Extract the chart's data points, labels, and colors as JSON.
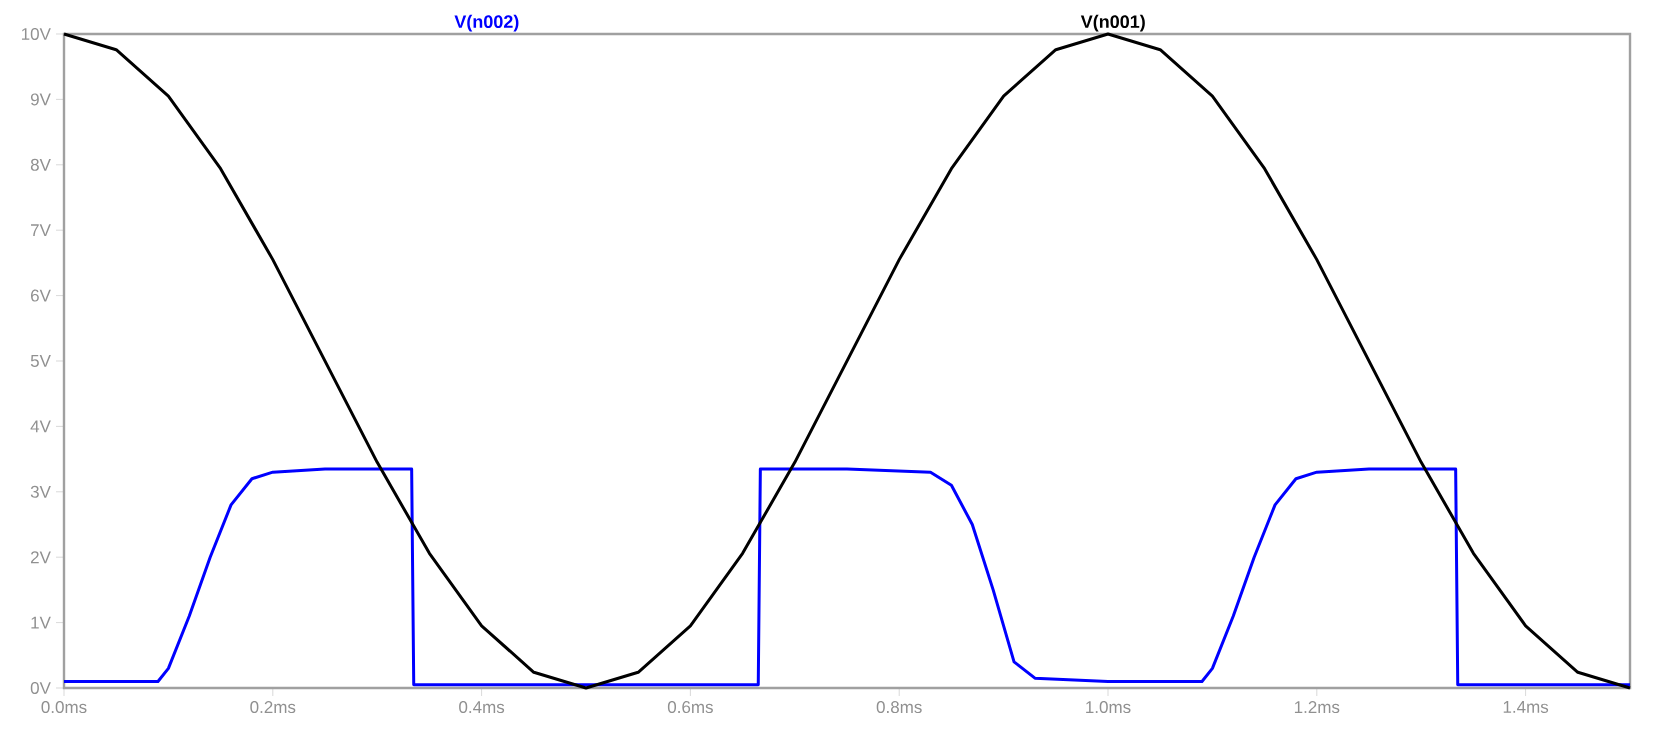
{
  "chart_data": {
    "type": "line",
    "legend": "top",
    "line_style": "solid",
    "xlim": [
      0,
      1.5
    ],
    "ylim": [
      0,
      10
    ],
    "xticks": [
      {
        "value": 0,
        "label": "0.0ms"
      },
      {
        "value": 0.2,
        "label": "0.2ms"
      },
      {
        "value": 0.4,
        "label": "0.4ms"
      },
      {
        "value": 0.6,
        "label": "0.6ms"
      },
      {
        "value": 0.8,
        "label": "0.8ms"
      },
      {
        "value": 1.0,
        "label": "1.0ms"
      },
      {
        "value": 1.2,
        "label": "1.2ms"
      },
      {
        "value": 1.4,
        "label": "1.4ms"
      }
    ],
    "yticks": [
      {
        "value": 0,
        "label": "0V"
      },
      {
        "value": 1,
        "label": "1V"
      },
      {
        "value": 2,
        "label": "2V"
      },
      {
        "value": 3,
        "label": "3V"
      },
      {
        "value": 4,
        "label": "4V"
      },
      {
        "value": 5,
        "label": "5V"
      },
      {
        "value": 6,
        "label": "6V"
      },
      {
        "value": 7,
        "label": "7V"
      },
      {
        "value": 8,
        "label": "8V"
      },
      {
        "value": 9,
        "label": "9V"
      },
      {
        "value": 10,
        "label": "10V"
      }
    ],
    "series": [
      {
        "name": "V(n002)",
        "color": "#0000ff",
        "x": [
          0,
          0.09,
          0.1,
          0.12,
          0.14,
          0.16,
          0.18,
          0.2,
          0.25,
          0.333,
          0.335,
          0.5,
          0.665,
          0.667,
          0.75,
          0.83,
          0.85,
          0.87,
          0.89,
          0.91,
          0.93,
          1.0,
          1.09,
          1.1,
          1.12,
          1.14,
          1.16,
          1.18,
          1.2,
          1.25,
          1.333,
          1.335,
          1.5
        ],
        "values": [
          0.1,
          0.1,
          0.3,
          1.1,
          2.0,
          2.8,
          3.2,
          3.3,
          3.35,
          3.35,
          0.05,
          0.05,
          0.05,
          3.35,
          3.35,
          3.3,
          3.1,
          2.5,
          1.5,
          0.4,
          0.15,
          0.1,
          0.1,
          0.3,
          1.1,
          2.0,
          2.8,
          3.2,
          3.3,
          3.35,
          3.35,
          0.05,
          0.05
        ]
      },
      {
        "name": "V(n001)",
        "color": "#000000",
        "x": [
          0,
          0.05,
          0.1,
          0.15,
          0.2,
          0.25,
          0.3,
          0.35,
          0.4,
          0.45,
          0.5,
          0.55,
          0.6,
          0.65,
          0.7,
          0.75,
          0.8,
          0.85,
          0.9,
          0.95,
          1.0,
          1.05,
          1.1,
          1.15,
          1.2,
          1.25,
          1.3,
          1.35,
          1.4,
          1.45,
          1.5
        ],
        "values": [
          10,
          9.76,
          9.05,
          7.94,
          6.55,
          5.0,
          3.45,
          2.06,
          0.95,
          0.24,
          0,
          0.24,
          0.95,
          2.06,
          3.45,
          5.0,
          6.55,
          7.94,
          9.05,
          9.76,
          10,
          9.76,
          9.05,
          7.94,
          6.55,
          5.0,
          3.45,
          2.06,
          0.95,
          0.24,
          0
        ]
      }
    ]
  }
}
